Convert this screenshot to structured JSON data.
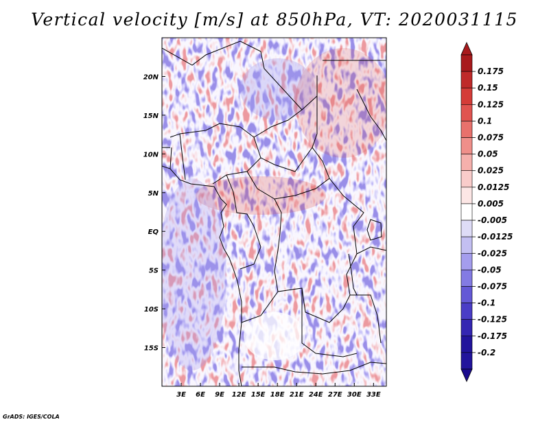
{
  "title": "Vertical velocity [m/s] at 850hPa, VT: 2020031115",
  "credit": "GrADS: IGES/COLA",
  "map": {
    "lon_range": [
      0,
      35
    ],
    "lat_range": [
      -20,
      25
    ],
    "lon_ticks": [
      {
        "value": 3,
        "label": "3E"
      },
      {
        "value": 6,
        "label": "6E"
      },
      {
        "value": 9,
        "label": "9E"
      },
      {
        "value": 12,
        "label": "12E"
      },
      {
        "value": 15,
        "label": "15E"
      },
      {
        "value": 18,
        "label": "18E"
      },
      {
        "value": 21,
        "label": "21E"
      },
      {
        "value": 24,
        "label": "24E"
      },
      {
        "value": 27,
        "label": "27E"
      },
      {
        "value": 30,
        "label": "30E"
      },
      {
        "value": 33,
        "label": "33E"
      }
    ],
    "lat_ticks": [
      {
        "value": 20,
        "label": "20N"
      },
      {
        "value": 15,
        "label": "15N"
      },
      {
        "value": 10,
        "label": "10N"
      },
      {
        "value": 5,
        "label": "5N"
      },
      {
        "value": 0,
        "label": "EQ"
      },
      {
        "value": -5,
        "label": "5S"
      },
      {
        "value": -10,
        "label": "10S"
      },
      {
        "value": -15,
        "label": "15S"
      }
    ]
  },
  "colorbar": {
    "levels": [
      {
        "label": "0.175",
        "color": "#a81a1c"
      },
      {
        "label": "0.15",
        "color": "#bf2a2a"
      },
      {
        "label": "0.125",
        "color": "#d43c38"
      },
      {
        "label": "0.1",
        "color": "#e05450"
      },
      {
        "label": "0.075",
        "color": "#e8716c"
      },
      {
        "label": "0.05",
        "color": "#ef8f8a"
      },
      {
        "label": "0.025",
        "color": "#f5b0ac"
      },
      {
        "label": "0.0125",
        "color": "#f9ccca"
      },
      {
        "label": "0.005",
        "color": "#fce6e5"
      },
      {
        "label": "-0.005",
        "color": "#ffffff"
      },
      {
        "label": "-0.0125",
        "color": "#dedcf7"
      },
      {
        "label": "-0.025",
        "color": "#c3bff2"
      },
      {
        "label": "-0.05",
        "color": "#a49ded"
      },
      {
        "label": "-0.075",
        "color": "#837be3"
      },
      {
        "label": "-0.1",
        "color": "#6459d6"
      },
      {
        "label": "-0.125",
        "color": "#4a3dc6"
      },
      {
        "label": "-0.175",
        "color": "#3426b2"
      },
      {
        "label": "-0.2",
        "color": "#22149c"
      }
    ],
    "bottom_color": "#1b0c8f"
  }
}
